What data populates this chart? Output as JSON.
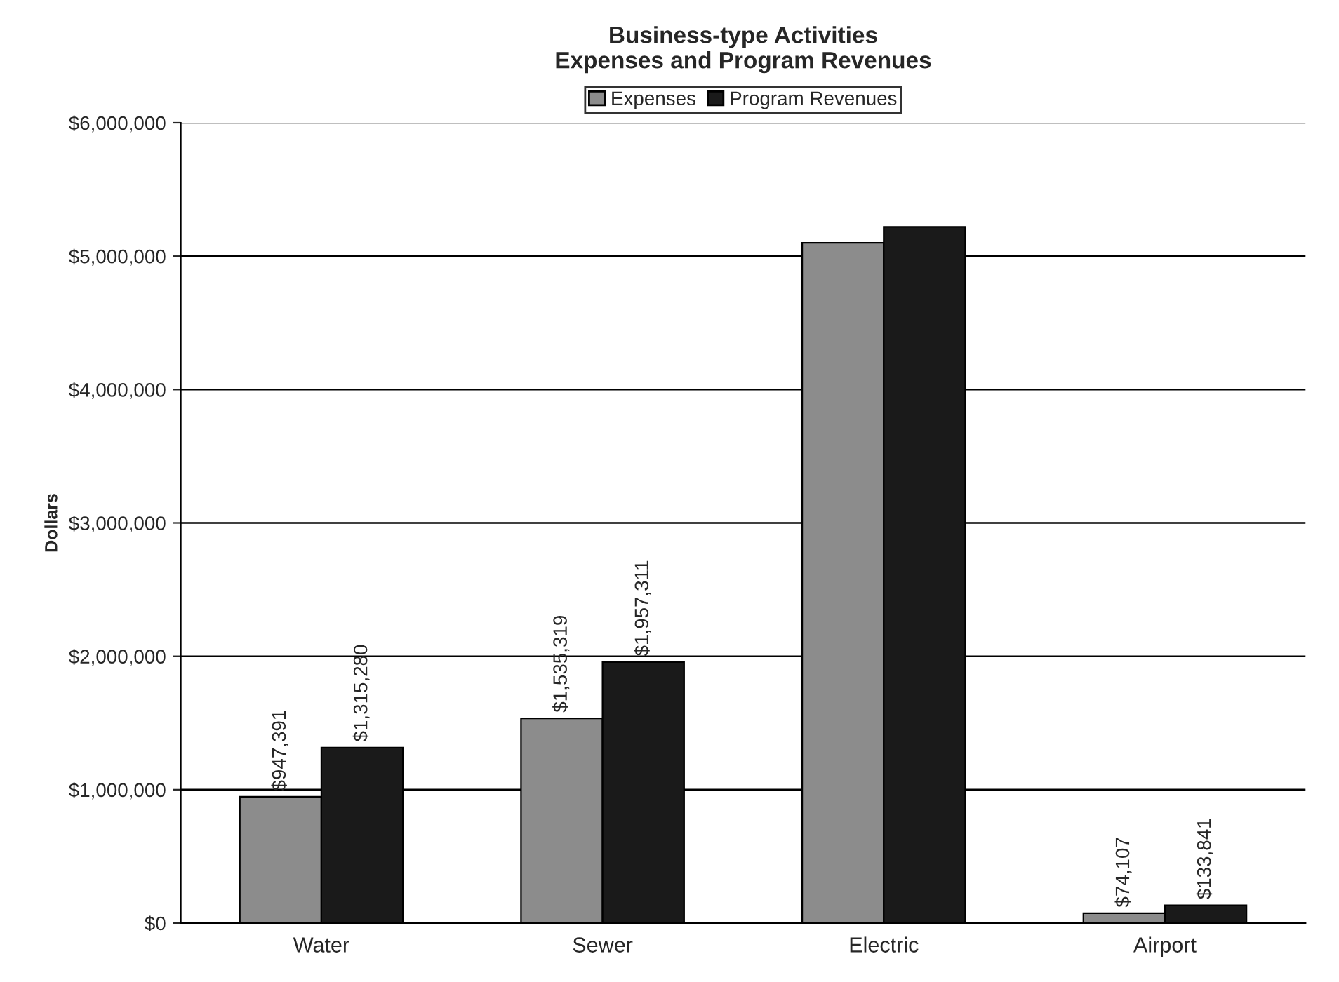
{
  "chart_data": {
    "type": "bar",
    "title": "Business-type Activities\nExpenses and Program Revenues",
    "ylabel": "Dollars",
    "categories": [
      "Water",
      "Sewer",
      "Electric",
      "Airport"
    ],
    "series": [
      {
        "name": "Expenses",
        "color": "#8c8c8c",
        "values": [
          947391,
          1535319,
          5100000,
          74107
        ],
        "value_labels": [
          "$947,391",
          "$1,535,319",
          null,
          "$74,107"
        ]
      },
      {
        "name": "Program Revenues",
        "color": "#1a1a1a",
        "values": [
          1315280,
          1957311,
          5220000,
          133841
        ],
        "value_labels": [
          "$1,315,280",
          "$1,957,311",
          null,
          "$133,841"
        ]
      }
    ],
    "ylim": [
      0,
      6000000
    ],
    "yticks": [
      {
        "value": 0,
        "label": "$0"
      },
      {
        "value": 1000000,
        "label": "$1,000,000"
      },
      {
        "value": 2000000,
        "label": "$2,000,000"
      },
      {
        "value": 3000000,
        "label": "$3,000,000"
      },
      {
        "value": 4000000,
        "label": "$4,000,000"
      },
      {
        "value": 5000000,
        "label": "$5,000,000"
      },
      {
        "value": 6000000,
        "label": "$6,000,000"
      }
    ],
    "grid": "y",
    "legend": "top"
  }
}
